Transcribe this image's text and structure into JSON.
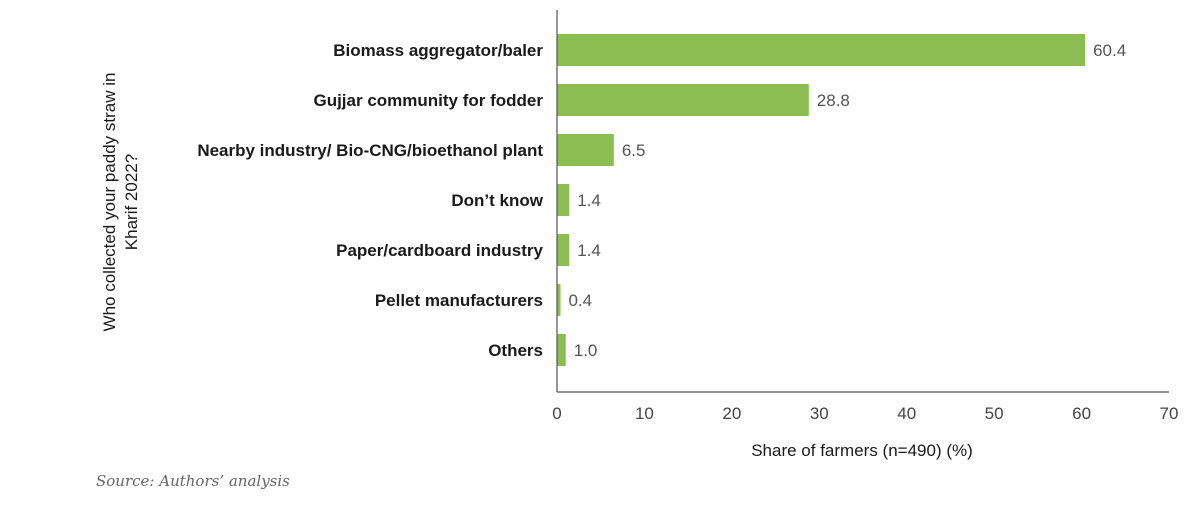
{
  "chart_data": {
    "type": "bar",
    "orientation": "horizontal",
    "categories": [
      "Biomass aggregator/baler",
      "Gujjar community for fodder",
      "Nearby industry/ Bio-CNG/bioethanol plant",
      "Don’t know",
      "Paper/cardboard industry",
      "Pellet manufacturers",
      "Others"
    ],
    "values": [
      60.4,
      28.8,
      6.5,
      1.4,
      1.4,
      0.4,
      1.0
    ],
    "value_labels": [
      "60.4",
      "28.8",
      "6.5",
      "1.4",
      "1.4",
      "0.4",
      "1.0"
    ],
    "xlabel": "Share of farmers (n=490) (%)",
    "ylabel_lines": [
      "Who collected your paddy straw in",
      "Kharif 2022?"
    ],
    "xlim": [
      0,
      70
    ],
    "xticks": [
      0,
      10,
      20,
      30,
      40,
      50,
      60,
      70
    ],
    "grid": false,
    "bar_color": "#8cbd53",
    "axis_color": "#555555"
  },
  "source": "Source: Authors’ analysis"
}
